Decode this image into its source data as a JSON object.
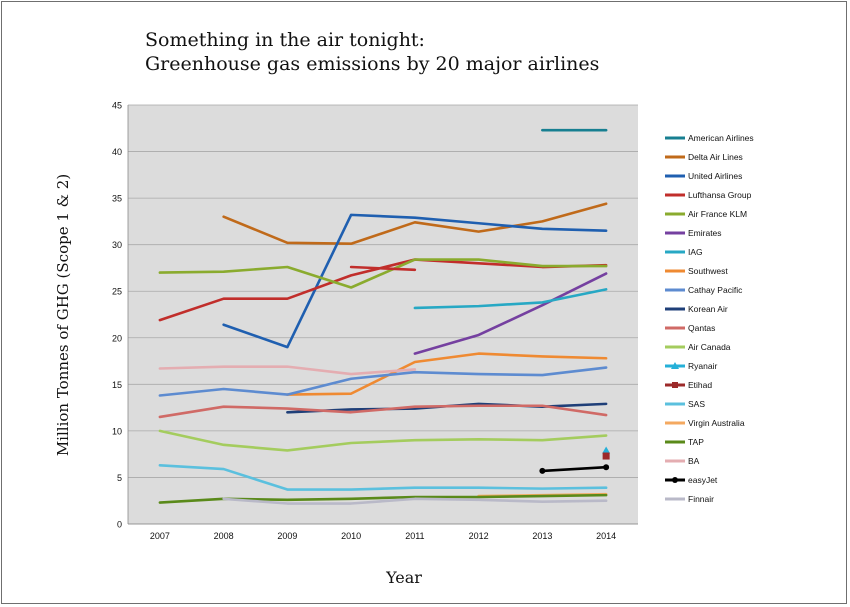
{
  "chart_data": {
    "type": "line",
    "title": "Something in the air tonight:",
    "subtitle": "Greenhouse gas emissions by 20 major airlines",
    "xlabel": "Year",
    "ylabel": "Million Tonnes of GHG (Scope 1 & 2)",
    "ylim": [
      0,
      45
    ],
    "yticks": [
      "0",
      "5",
      "10",
      "15",
      "20",
      "25",
      "30",
      "35",
      "40",
      "45"
    ],
    "x": [
      "2007",
      "2008",
      "2009",
      "2010",
      "2011",
      "2012",
      "2013",
      "2014"
    ],
    "grid": true,
    "legend_position": "right",
    "series": [
      {
        "name": "American Airlines",
        "color": "#177f91",
        "marker": "",
        "values": [
          null,
          null,
          null,
          null,
          null,
          null,
          42.3,
          42.3
        ]
      },
      {
        "name": "Delta Air Lines",
        "color": "#c06a1a",
        "marker": "",
        "values": [
          null,
          33.0,
          30.2,
          30.1,
          32.4,
          31.4,
          32.5,
          34.4
        ]
      },
      {
        "name": "United Airlines",
        "color": "#1f5fb0",
        "marker": "",
        "values": [
          null,
          21.4,
          19.0,
          33.2,
          32.9,
          32.3,
          31.7,
          31.5
        ]
      },
      {
        "name": "Lufthansa Group",
        "color": "#c12e2b",
        "marker": "",
        "values": [
          21.9,
          24.2,
          24.2,
          26.7,
          28.4,
          28.0,
          27.6,
          27.8
        ]
      },
      {
        "name": "Air France KLM",
        "color": "#8aab2e",
        "marker": "",
        "values": [
          27.0,
          27.1,
          27.6,
          25.4,
          28.4,
          28.4,
          27.7,
          27.7
        ]
      },
      {
        "name": "Emirates",
        "color": "#7540a0",
        "marker": "",
        "values": [
          null,
          null,
          null,
          null,
          18.3,
          20.3,
          23.5,
          26.9
        ]
      },
      {
        "name": "IAG",
        "color": "#27a8c4",
        "marker": "",
        "values": [
          null,
          null,
          null,
          null,
          23.2,
          23.4,
          23.8,
          25.2
        ]
      },
      {
        "name": "Southwest",
        "color": "#ef8a32",
        "marker": "",
        "values": [
          null,
          null,
          13.9,
          14.0,
          17.4,
          18.3,
          18.0,
          17.8
        ]
      },
      {
        "name": "Cathay Pacific",
        "color": "#5d8bd0",
        "marker": "",
        "values": [
          13.8,
          14.5,
          13.9,
          15.6,
          16.3,
          16.1,
          16.0,
          16.8
        ]
      },
      {
        "name": "Korean Air",
        "color": "#1f3f78",
        "marker": "",
        "values": [
          null,
          null,
          12.0,
          12.3,
          12.4,
          12.9,
          12.6,
          12.9
        ]
      },
      {
        "name": "Qantas",
        "color": "#d06a66",
        "marker": "",
        "values": [
          11.5,
          12.6,
          12.4,
          12.0,
          12.6,
          12.7,
          12.7,
          11.7
        ]
      },
      {
        "name": "Air Canada",
        "color": "#a4cc5e",
        "marker": "",
        "values": [
          10.0,
          8.5,
          7.9,
          8.7,
          9.0,
          9.1,
          9.0,
          9.5
        ]
      },
      {
        "name": "Ryanair",
        "color": "#25b0d8",
        "marker": "triangle",
        "values": [
          null,
          null,
          null,
          null,
          null,
          null,
          null,
          7.9
        ]
      },
      {
        "name": "Etihad",
        "color": "#9c2a2a",
        "marker": "square",
        "values": [
          null,
          null,
          null,
          null,
          null,
          null,
          null,
          7.3
        ]
      },
      {
        "name": "SAS",
        "color": "#5bc0de",
        "marker": "",
        "values": [
          6.3,
          5.9,
          3.7,
          3.7,
          3.9,
          3.9,
          3.8,
          3.9
        ]
      },
      {
        "name": "Virgin Australia",
        "color": "#f4a960",
        "marker": "",
        "values": [
          null,
          null,
          null,
          null,
          null,
          3.0,
          3.1,
          3.2
        ]
      },
      {
        "name": "TAP",
        "color": "#5a8a1a",
        "marker": "",
        "values": [
          2.3,
          2.7,
          2.6,
          2.7,
          2.9,
          2.9,
          3.0,
          3.1
        ]
      },
      {
        "name": "BA",
        "color": "#e4adb1",
        "marker": "",
        "values": [
          16.7,
          16.9,
          16.9,
          16.1,
          16.6,
          null,
          null,
          null
        ]
      },
      {
        "name": "easyJet",
        "color": "#000000",
        "marker": "circle",
        "values": [
          null,
          null,
          null,
          null,
          null,
          null,
          5.7,
          6.1
        ]
      },
      {
        "name": "Finnair",
        "color": "#b9b9c8",
        "marker": "",
        "values": [
          null,
          2.7,
          2.2,
          2.2,
          2.7,
          2.6,
          2.4,
          2.5
        ]
      },
      {
        "name": "Lufthansa Group",
        "color": "#c12e2b",
        "marker": "",
        "values": [
          null,
          null,
          null,
          27.6,
          27.3,
          null,
          null,
          null
        ]
      }
    ]
  }
}
